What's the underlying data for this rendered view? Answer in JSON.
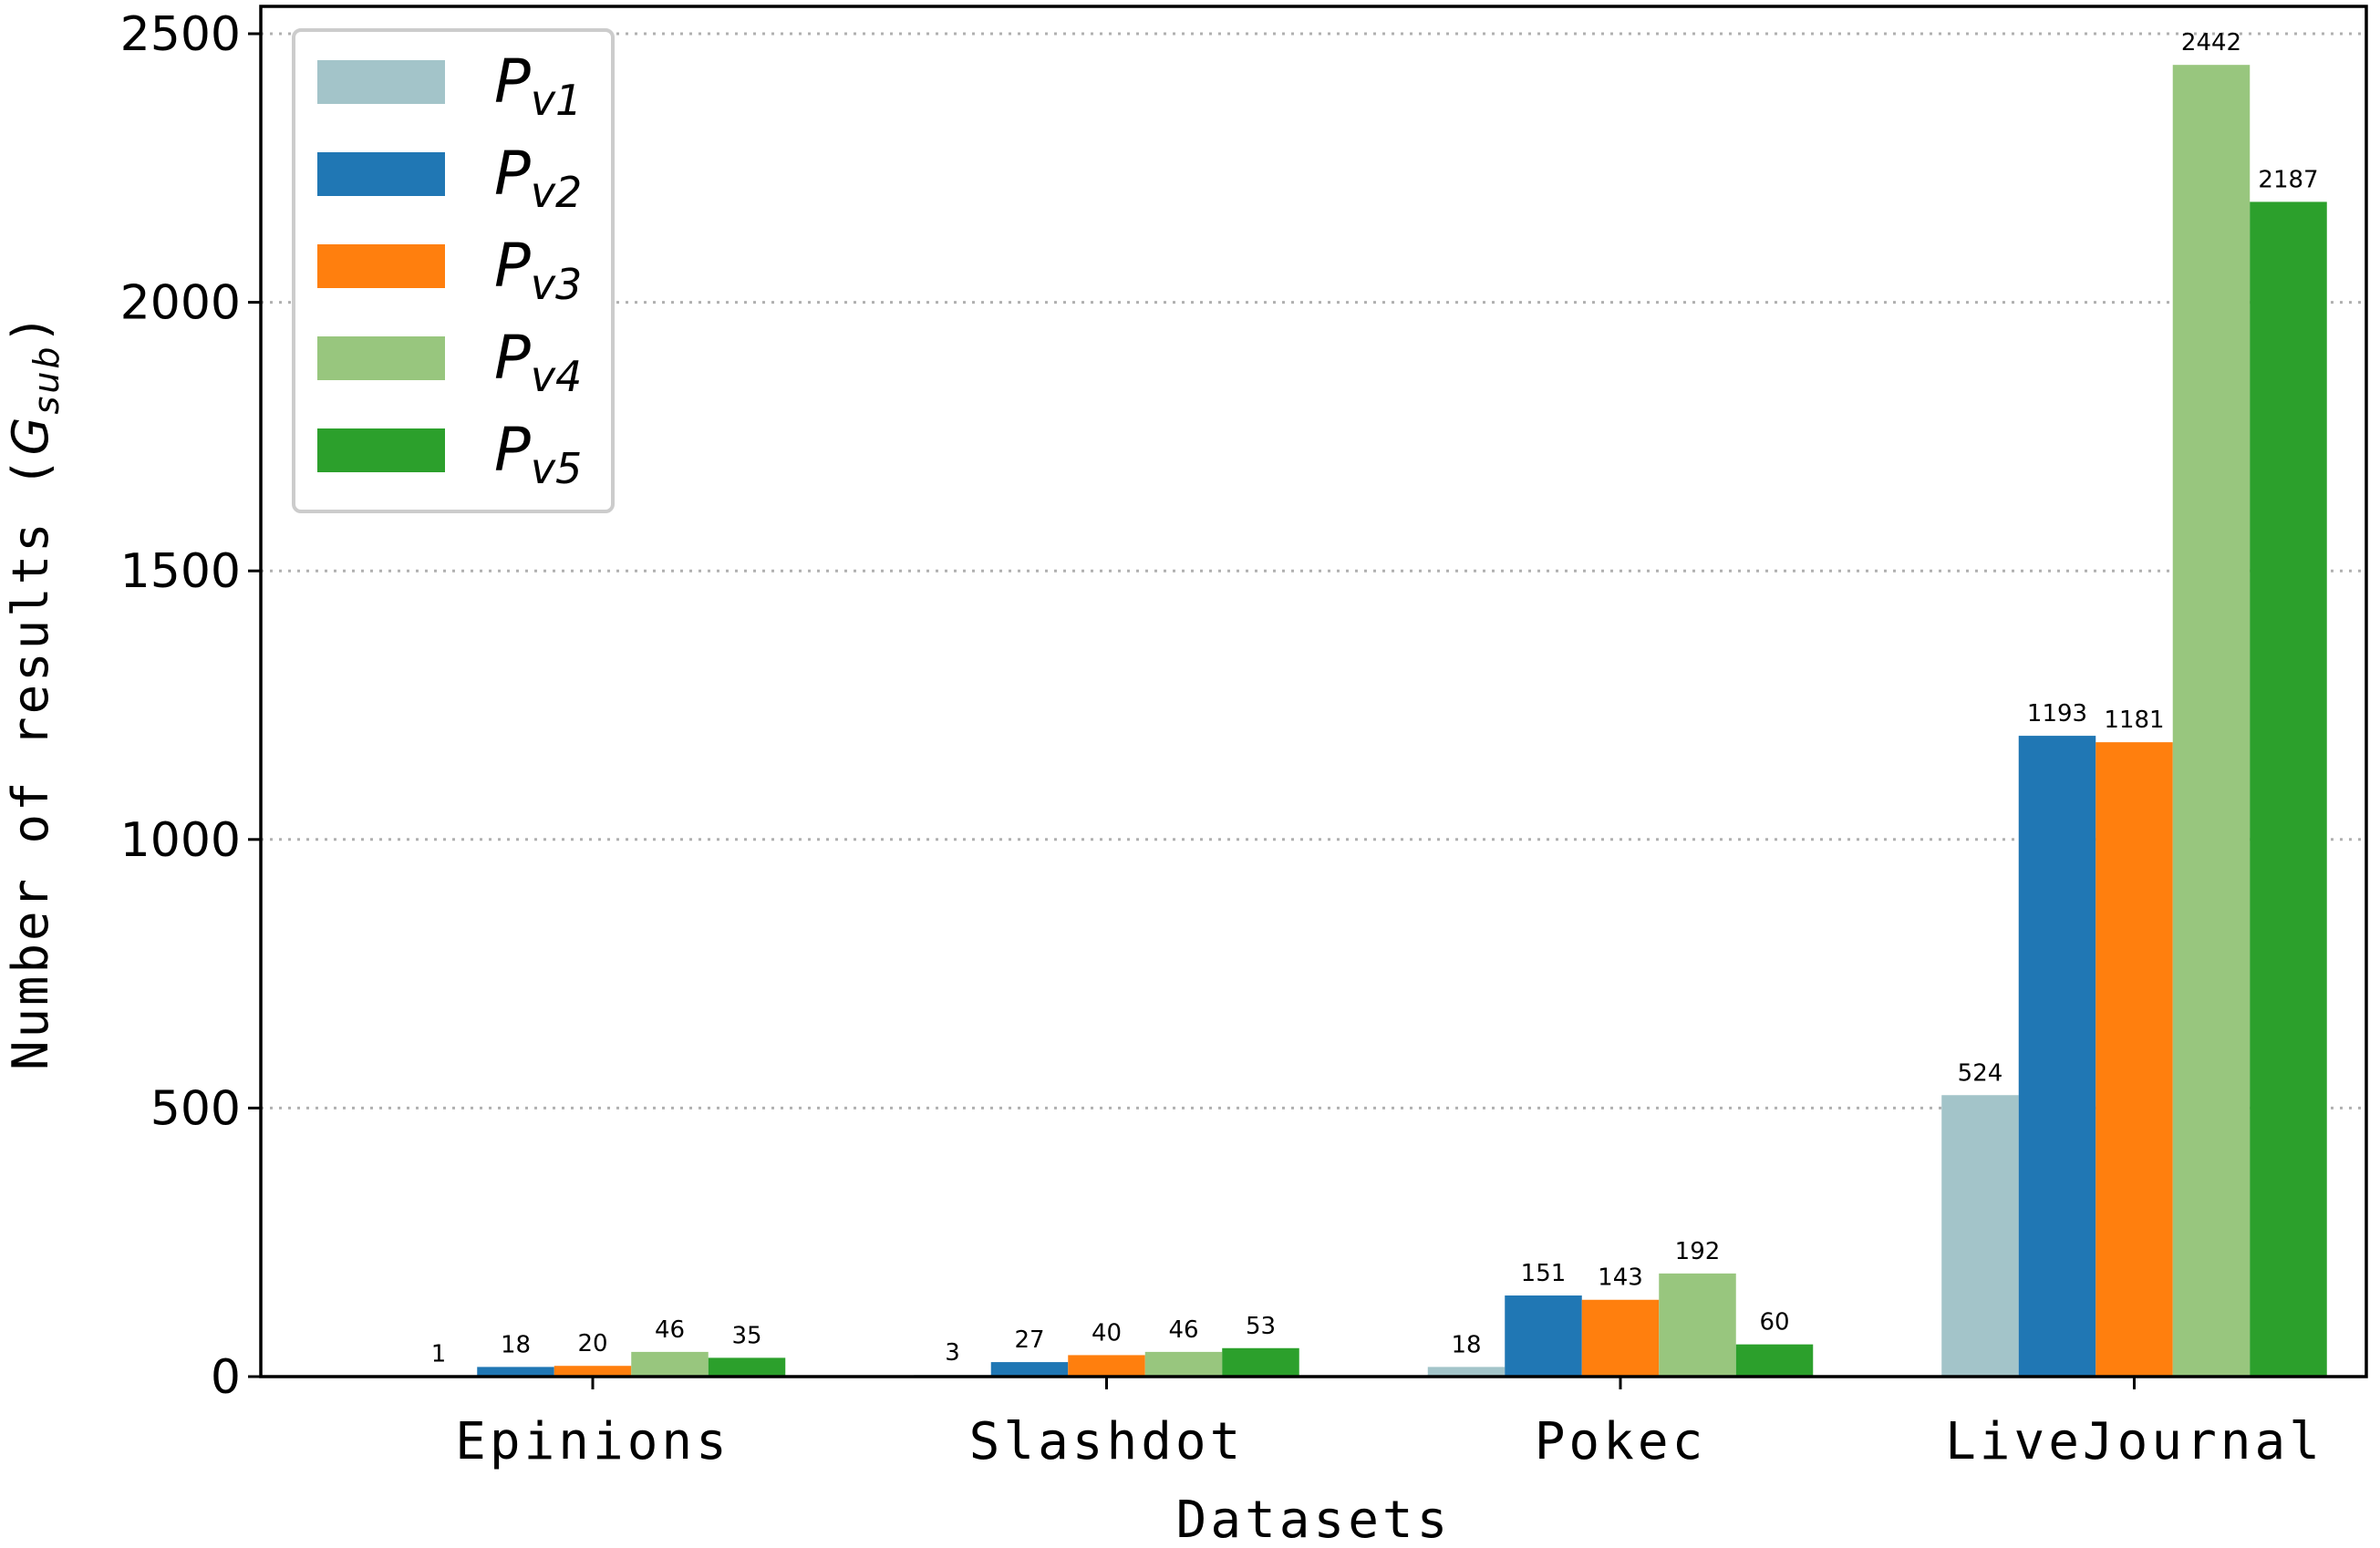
{
  "chart_data": {
    "type": "bar",
    "title": "",
    "xlabel": "Datasets",
    "ylabel": {
      "main": "Number of results (",
      "symbol": "G",
      "subscript": "sub",
      "close": ")"
    },
    "categories": [
      "Epinions",
      "Slashdot",
      "Pokec",
      "LiveJournal"
    ],
    "series": [
      {
        "name": "P",
        "subscript": "v1",
        "color": "#a3c4c9",
        "values": [
          1,
          3,
          18,
          524
        ]
      },
      {
        "name": "P",
        "subscript": "v2",
        "color": "#2077b4",
        "values": [
          18,
          27,
          151,
          1193
        ]
      },
      {
        "name": "P",
        "subscript": "v3",
        "color": "#ff7f0e",
        "values": [
          20,
          40,
          143,
          1181
        ]
      },
      {
        "name": "P",
        "subscript": "v4",
        "color": "#98c67e",
        "values": [
          46,
          46,
          192,
          2442
        ]
      },
      {
        "name": "P",
        "subscript": "v5",
        "color": "#2ca02c",
        "values": [
          35,
          53,
          60,
          2187
        ]
      }
    ],
    "ylim": [
      0,
      2500
    ],
    "yticks": [
      0,
      500,
      1000,
      1500,
      2000,
      2500
    ],
    "grid": "horizontal dotted",
    "legend_position": "top-left"
  }
}
